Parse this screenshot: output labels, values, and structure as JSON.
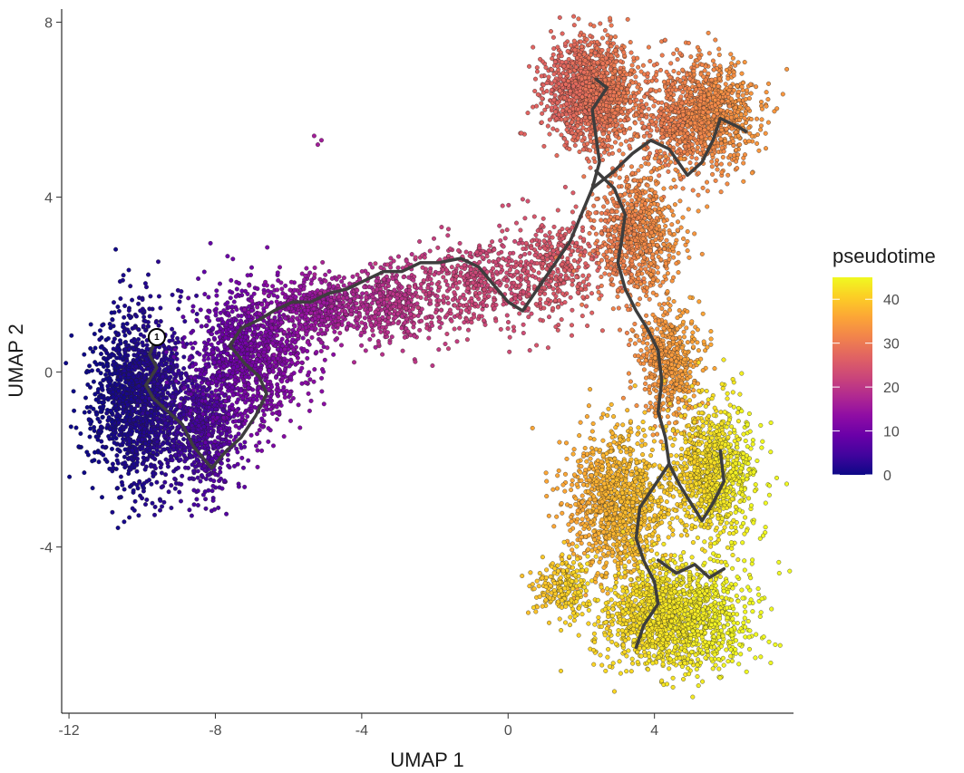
{
  "chart_data": {
    "type": "scatter",
    "title": "",
    "xlabel": "UMAP 1",
    "ylabel": "UMAP 2",
    "xlim": [
      -12.2,
      7.8
    ],
    "ylim": [
      -7.8,
      8.3
    ],
    "x_ticks": [
      -12,
      -8,
      -4,
      0,
      4
    ],
    "x_tick_labels": [
      "-12",
      "-8",
      "-4",
      "0",
      "4"
    ],
    "y_ticks": [
      -4,
      0,
      4,
      8
    ],
    "y_tick_labels": [
      "-4",
      "0",
      "4",
      "8"
    ],
    "grid": false,
    "color_scale": {
      "title": "pseudotime",
      "palette": "plasma",
      "range": [
        0,
        45
      ],
      "ticks": [
        0,
        10,
        20,
        30,
        40
      ],
      "tick_labels": [
        "0",
        "10",
        "20",
        "30",
        "40"
      ],
      "placement": "right"
    },
    "clusters": [
      {
        "cx": -10.1,
        "cy": -0.6,
        "sx": 0.85,
        "sy": 1.3,
        "n": 1500,
        "t0": 0,
        "t1": 3
      },
      {
        "cx": -8.3,
        "cy": -1.3,
        "sx": 0.7,
        "sy": 1.0,
        "n": 700,
        "t0": 3,
        "t1": 8
      },
      {
        "cx": -7.0,
        "cy": 0.4,
        "sx": 1.0,
        "sy": 1.0,
        "n": 1100,
        "t0": 8,
        "t1": 13
      },
      {
        "cx": -5.2,
        "cy": 1.5,
        "sx": 0.9,
        "sy": 0.5,
        "n": 450,
        "t0": 13,
        "t1": 17
      },
      {
        "cx": -3.2,
        "cy": 1.6,
        "sx": 1.0,
        "sy": 0.6,
        "n": 450,
        "t0": 17,
        "t1": 21
      },
      {
        "cx": -0.8,
        "cy": 2.0,
        "sx": 1.1,
        "sy": 0.7,
        "n": 450,
        "t0": 21,
        "t1": 24
      },
      {
        "cx": 1.4,
        "cy": 2.4,
        "sx": 0.8,
        "sy": 0.8,
        "n": 350,
        "t0": 24,
        "t1": 27
      },
      {
        "cx": 2.3,
        "cy": 6.4,
        "sx": 0.8,
        "sy": 0.8,
        "n": 1400,
        "t0": 27,
        "t1": 31
      },
      {
        "cx": 5.2,
        "cy": 5.9,
        "sx": 1.0,
        "sy": 0.8,
        "n": 1200,
        "t0": 30,
        "t1": 34
      },
      {
        "cx": 3.5,
        "cy": 3.2,
        "sx": 0.8,
        "sy": 1.0,
        "n": 800,
        "t0": 30,
        "t1": 34
      },
      {
        "cx": 4.4,
        "cy": 0.2,
        "sx": 0.6,
        "sy": 0.9,
        "n": 500,
        "t0": 33,
        "t1": 36
      },
      {
        "cx": 3.0,
        "cy": -3.0,
        "sx": 0.9,
        "sy": 1.1,
        "n": 1100,
        "t0": 36,
        "t1": 40
      },
      {
        "cx": 5.6,
        "cy": -2.3,
        "sx": 0.8,
        "sy": 1.1,
        "n": 900,
        "t0": 40,
        "t1": 45
      },
      {
        "cx": 4.5,
        "cy": -5.6,
        "sx": 1.4,
        "sy": 0.8,
        "n": 1500,
        "t0": 41,
        "t1": 45
      },
      {
        "cx": 1.5,
        "cy": -4.9,
        "sx": 0.5,
        "sy": 0.4,
        "n": 220,
        "t0": 39,
        "t1": 42
      }
    ],
    "trajectory": [
      [
        [
          -9.6,
          0.8
        ],
        [
          -9.8,
          0.4
        ],
        [
          -9.6,
          0.1
        ],
        [
          -9.9,
          -0.3
        ],
        [
          -9.7,
          -0.6
        ],
        [
          -9.3,
          -0.9
        ],
        [
          -8.9,
          -1.2
        ],
        [
          -8.6,
          -1.7
        ],
        [
          -8.1,
          -2.2
        ],
        [
          -7.7,
          -1.8
        ],
        [
          -7.3,
          -1.5
        ],
        [
          -6.9,
          -1.0
        ],
        [
          -6.6,
          -0.5
        ],
        [
          -6.8,
          -0.1
        ],
        [
          -7.2,
          0.2
        ],
        [
          -7.6,
          0.6
        ],
        [
          -7.3,
          1.0
        ],
        [
          -6.8,
          1.2
        ],
        [
          -6.4,
          1.4
        ],
        [
          -5.9,
          1.6
        ],
        [
          -5.4,
          1.6
        ],
        [
          -4.9,
          1.8
        ],
        [
          -4.4,
          1.9
        ],
        [
          -3.9,
          2.1
        ],
        [
          -3.4,
          2.3
        ],
        [
          -2.9,
          2.3
        ],
        [
          -2.4,
          2.5
        ],
        [
          -1.9,
          2.5
        ],
        [
          -1.3,
          2.6
        ],
        [
          -0.8,
          2.4
        ],
        [
          -0.4,
          2.0
        ],
        [
          0.0,
          1.6
        ],
        [
          0.4,
          1.4
        ],
        [
          0.8,
          1.9
        ],
        [
          1.3,
          2.5
        ],
        [
          1.7,
          3.0
        ],
        [
          2.0,
          3.6
        ],
        [
          2.3,
          4.2
        ],
        [
          2.5,
          4.8
        ],
        [
          2.4,
          5.4
        ],
        [
          2.3,
          6.0
        ],
        [
          2.7,
          6.5
        ],
        [
          2.4,
          6.7
        ]
      ],
      [
        [
          2.3,
          4.2
        ],
        [
          2.9,
          4.6
        ],
        [
          3.4,
          5.0
        ],
        [
          3.9,
          5.3
        ],
        [
          4.4,
          5.1
        ],
        [
          4.9,
          4.5
        ],
        [
          5.3,
          4.8
        ],
        [
          5.6,
          5.3
        ],
        [
          5.8,
          5.8
        ],
        [
          6.3,
          5.6
        ],
        [
          6.5,
          5.5
        ]
      ],
      [
        [
          2.4,
          4.6
        ],
        [
          2.9,
          4.2
        ],
        [
          3.2,
          3.6
        ],
        [
          3.1,
          3.0
        ],
        [
          3.0,
          2.5
        ],
        [
          3.2,
          1.9
        ],
        [
          3.5,
          1.4
        ],
        [
          3.8,
          1.0
        ],
        [
          4.1,
          0.5
        ],
        [
          4.2,
          -0.2
        ],
        [
          4.1,
          -0.9
        ],
        [
          4.3,
          -1.5
        ],
        [
          4.4,
          -2.1
        ],
        [
          4.0,
          -2.6
        ],
        [
          3.6,
          -3.1
        ],
        [
          3.5,
          -3.8
        ],
        [
          3.7,
          -4.3
        ],
        [
          4.0,
          -4.8
        ],
        [
          4.1,
          -5.3
        ],
        [
          3.7,
          -5.8
        ],
        [
          3.5,
          -6.3
        ]
      ],
      [
        [
          4.4,
          -2.1
        ],
        [
          4.7,
          -2.6
        ],
        [
          5.0,
          -3.0
        ],
        [
          5.3,
          -3.4
        ],
        [
          5.6,
          -3.0
        ],
        [
          5.9,
          -2.5
        ],
        [
          5.8,
          -1.8
        ]
      ],
      [
        [
          4.1,
          -4.3
        ],
        [
          4.6,
          -4.6
        ],
        [
          5.1,
          -4.4
        ],
        [
          5.5,
          -4.7
        ],
        [
          5.9,
          -4.5
        ]
      ]
    ],
    "root_node": {
      "label": "1",
      "x": -9.6,
      "y": 0.8
    },
    "outlier_points": [
      [
        -5.2,
        5.2
      ],
      [
        -5.3,
        5.4
      ],
      [
        -5.1,
        5.3
      ]
    ]
  }
}
